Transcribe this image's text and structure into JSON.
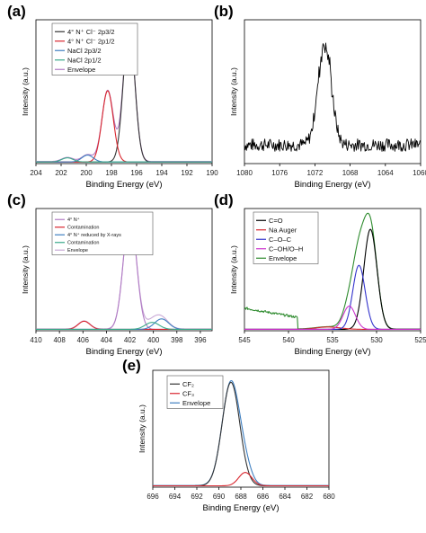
{
  "chart_data": [
    {
      "panel_label": "(a)",
      "type": "line",
      "xlabel": "Binding Energy (eV)",
      "ylabel": "Intensity (a.u.)",
      "xlim": [
        204,
        190
      ],
      "ylim": [
        0,
        1.05
      ],
      "x_ticks": [
        204,
        202,
        200,
        198,
        196,
        194,
        192,
        190
      ],
      "legend_position": "top-left",
      "grid": false,
      "series": [
        {
          "name": "4° N⁺ Cl⁻ 2p3/2",
          "color": "#333333",
          "peaks": [
            {
              "center": 196.6,
              "height": 1.0,
              "width": 0.45
            }
          ]
        },
        {
          "name": "4° N⁺ Cl⁻ 2p1/2",
          "color": "#d9262e",
          "peaks": [
            {
              "center": 198.3,
              "height": 0.52,
              "width": 0.45
            }
          ]
        },
        {
          "name": "NaCl 2p3/2",
          "color": "#3f7fc0",
          "peaks": [
            {
              "center": 199.9,
              "height": 0.05,
              "width": 0.45
            }
          ]
        },
        {
          "name": "NaCl 2p1/2",
          "color": "#3aaa8a",
          "peaks": [
            {
              "center": 201.5,
              "height": 0.03,
              "width": 0.45
            }
          ]
        },
        {
          "name": "Envelope",
          "color": "#b07ac4",
          "type": "sum"
        }
      ]
    },
    {
      "panel_label": "(b)",
      "type": "line",
      "xlabel": "Binding Energy (eV)",
      "ylabel": "Intensity (a.u.)",
      "xlim": [
        1080,
        1060
      ],
      "ylim": [
        0,
        1.0
      ],
      "x_ticks": [
        1080,
        1076,
        1072,
        1068,
        1064,
        1060
      ],
      "grid": false,
      "series": [
        {
          "name": "",
          "color": "#000000",
          "style": "noisy",
          "baseline": 0.13,
          "noise": 0.045,
          "peaks": [
            {
              "center": 1070.9,
              "height": 0.72,
              "width": 0.75
            }
          ]
        }
      ]
    },
    {
      "panel_label": "(c)",
      "type": "line",
      "xlabel": "Binding Energy (eV)",
      "ylabel": "Intensity (a.u.)",
      "xlim": [
        410,
        395
      ],
      "ylim": [
        0,
        1.05
      ],
      "x_ticks": [
        410,
        408,
        406,
        404,
        402,
        400,
        398,
        396
      ],
      "legend_position": "top-left",
      "grid": false,
      "series": [
        {
          "name": "4° N⁺",
          "color": "#b07ac4",
          "peaks": [
            {
              "center": 402.0,
              "height": 1.0,
              "width": 0.55
            }
          ]
        },
        {
          "name": "Contamination",
          "color": "#d9262e",
          "peaks": [
            {
              "center": 405.9,
              "height": 0.07,
              "width": 0.5
            }
          ]
        },
        {
          "name": "4° N⁺ reduced by X-rays",
          "color": "#3f7fc0",
          "peaks": [
            {
              "center": 399.3,
              "height": 0.09,
              "width": 0.6
            }
          ]
        },
        {
          "name": "Contamination",
          "color": "#3aaa8a",
          "peaks": [
            {
              "center": 400.1,
              "height": 0.06,
              "width": 0.6
            }
          ]
        },
        {
          "name": "Envelope",
          "color": "#c9a9d6",
          "type": "sum"
        }
      ]
    },
    {
      "panel_label": "(d)",
      "type": "line",
      "xlabel": "Binding Energy (eV)",
      "ylabel": "Intensity (a.u.)",
      "xlim": [
        545,
        525
      ],
      "ylim": [
        0,
        1.05
      ],
      "x_ticks": [
        545,
        540,
        535,
        530,
        525
      ],
      "legend_position": "top-left",
      "grid": false,
      "series": [
        {
          "name": "C=O",
          "color": "#000000",
          "peaks": [
            {
              "center": 530.7,
              "height": 0.86,
              "width": 0.75
            }
          ]
        },
        {
          "name": "Na Auger",
          "color": "#d9262e",
          "peaks": [
            {
              "center": 535.5,
              "height": 0.02,
              "width": 1.4
            }
          ]
        },
        {
          "name": "C–O–C",
          "color": "#3333cc",
          "peaks": [
            {
              "center": 532.0,
              "height": 0.55,
              "width": 0.7
            }
          ]
        },
        {
          "name": "C–OH/O–H",
          "color": "#cc33cc",
          "peaks": [
            {
              "center": 533.1,
              "height": 0.2,
              "width": 0.7
            }
          ]
        },
        {
          "name": "Envelope",
          "color": "#2e8b2e",
          "type": "sum",
          "low_energy_tail": {
            "from": 545,
            "to": 539,
            "start": 0.18,
            "end": 0.1
          }
        }
      ]
    },
    {
      "panel_label": "(e)",
      "type": "line",
      "xlabel": "Binding Energy (eV)",
      "ylabel": "Intensity (a.u.)",
      "xlim": [
        696,
        680
      ],
      "ylim": [
        0,
        1.05
      ],
      "x_ticks": [
        696,
        694,
        692,
        690,
        688,
        686,
        684,
        682,
        680
      ],
      "legend_position": "top-left",
      "grid": false,
      "series": [
        {
          "name": "CF₂",
          "color": "#333333",
          "peaks": [
            {
              "center": 688.9,
              "height": 0.93,
              "width": 0.8
            }
          ]
        },
        {
          "name": "CF₃",
          "color": "#d9262e",
          "peaks": [
            {
              "center": 687.6,
              "height": 0.12,
              "width": 0.6
            }
          ]
        },
        {
          "name": "Envelope",
          "color": "#3f7fc0",
          "type": "sum"
        }
      ]
    }
  ]
}
